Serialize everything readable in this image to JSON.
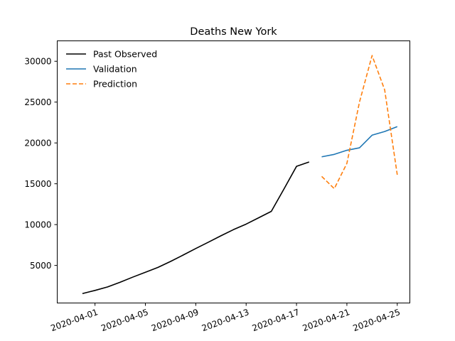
{
  "chart_data": {
    "type": "line",
    "title": "Deaths New York",
    "xlabel": "",
    "ylabel": "",
    "x_tick_labels": [
      "2020-04-01",
      "2020-04-05",
      "2020-04-09",
      "2020-04-13",
      "2020-04-17",
      "2020-04-21",
      "2020-04-25"
    ],
    "y_ticks": [
      5000,
      10000,
      15000,
      20000,
      25000,
      30000
    ],
    "xlim": [
      "2020-03-29",
      "2020-04-26"
    ],
    "ylim": [
      400,
      32500
    ],
    "grid": false,
    "legend_position": "top-left",
    "series": [
      {
        "name": "Past Observed",
        "color": "#000000",
        "dash": "solid",
        "points": [
          [
            "2020-03-31",
            1550
          ],
          [
            "2020-04-01",
            1940
          ],
          [
            "2020-04-02",
            2370
          ],
          [
            "2020-04-03",
            2940
          ],
          [
            "2020-04-04",
            3570
          ],
          [
            "2020-04-05",
            4160
          ],
          [
            "2020-04-06",
            4760
          ],
          [
            "2020-04-07",
            5490
          ],
          [
            "2020-04-08",
            6270
          ],
          [
            "2020-04-09",
            7070
          ],
          [
            "2020-04-10",
            7840
          ],
          [
            "2020-04-11",
            8630
          ],
          [
            "2020-04-12",
            9390
          ],
          [
            "2020-04-13",
            10060
          ],
          [
            "2020-04-14",
            10840
          ],
          [
            "2020-04-15",
            11620
          ],
          [
            "2020-04-16",
            14350
          ],
          [
            "2020-04-17",
            17130
          ],
          [
            "2020-04-18",
            17670
          ]
        ]
      },
      {
        "name": "Validation",
        "color": "#1f77b4",
        "dash": "solid",
        "points": [
          [
            "2020-04-19",
            18300
          ],
          [
            "2020-04-20",
            18600
          ],
          [
            "2020-04-21",
            19100
          ],
          [
            "2020-04-22",
            19400
          ],
          [
            "2020-04-23",
            20950
          ],
          [
            "2020-04-24",
            21400
          ],
          [
            "2020-04-25",
            22000
          ]
        ]
      },
      {
        "name": "Prediction",
        "color": "#ff7f0e",
        "dash": "dashed",
        "points": [
          [
            "2020-04-19",
            15900
          ],
          [
            "2020-04-20",
            14400
          ],
          [
            "2020-04-21",
            17500
          ],
          [
            "2020-04-22",
            25000
          ],
          [
            "2020-04-23",
            30700
          ],
          [
            "2020-04-24",
            26500
          ],
          [
            "2020-04-25",
            16100
          ]
        ]
      }
    ]
  }
}
